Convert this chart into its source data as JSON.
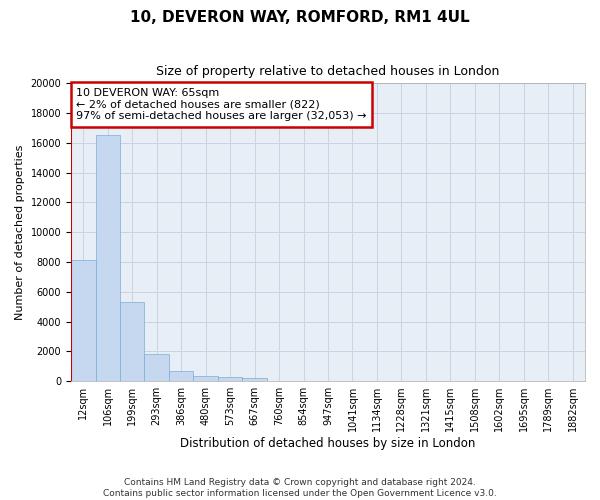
{
  "title": "10, DEVERON WAY, ROMFORD, RM1 4UL",
  "subtitle": "Size of property relative to detached houses in London",
  "xlabel": "Distribution of detached houses by size in London",
  "ylabel": "Number of detached properties",
  "categories": [
    "12sqm",
    "106sqm",
    "199sqm",
    "293sqm",
    "386sqm",
    "480sqm",
    "573sqm",
    "667sqm",
    "760sqm",
    "854sqm",
    "947sqm",
    "1041sqm",
    "1134sqm",
    "1228sqm",
    "1321sqm",
    "1415sqm",
    "1508sqm",
    "1602sqm",
    "1695sqm",
    "1789sqm",
    "1882sqm"
  ],
  "bar_heights": [
    8100,
    16500,
    5300,
    1850,
    700,
    330,
    270,
    230,
    0,
    0,
    0,
    0,
    0,
    0,
    0,
    0,
    0,
    0,
    0,
    0,
    0
  ],
  "bar_color": "#c5d8ef",
  "bar_edge_color": "#7aadd4",
  "grid_color": "#c8d4e3",
  "bg_color": "#e8eef6",
  "vline_color": "#cc0000",
  "annotation_text": "10 DEVERON WAY: 65sqm\n← 2% of detached houses are smaller (822)\n97% of semi-detached houses are larger (32,053) →",
  "annotation_box_color": "#cc0000",
  "ylim": [
    0,
    20000
  ],
  "yticks": [
    0,
    2000,
    4000,
    6000,
    8000,
    10000,
    12000,
    14000,
    16000,
    18000,
    20000
  ],
  "footer": "Contains HM Land Registry data © Crown copyright and database right 2024.\nContains public sector information licensed under the Open Government Licence v3.0.",
  "title_fontsize": 11,
  "subtitle_fontsize": 9,
  "xlabel_fontsize": 8.5,
  "ylabel_fontsize": 8,
  "tick_fontsize": 7,
  "footer_fontsize": 6.5,
  "ann_fontsize": 8
}
